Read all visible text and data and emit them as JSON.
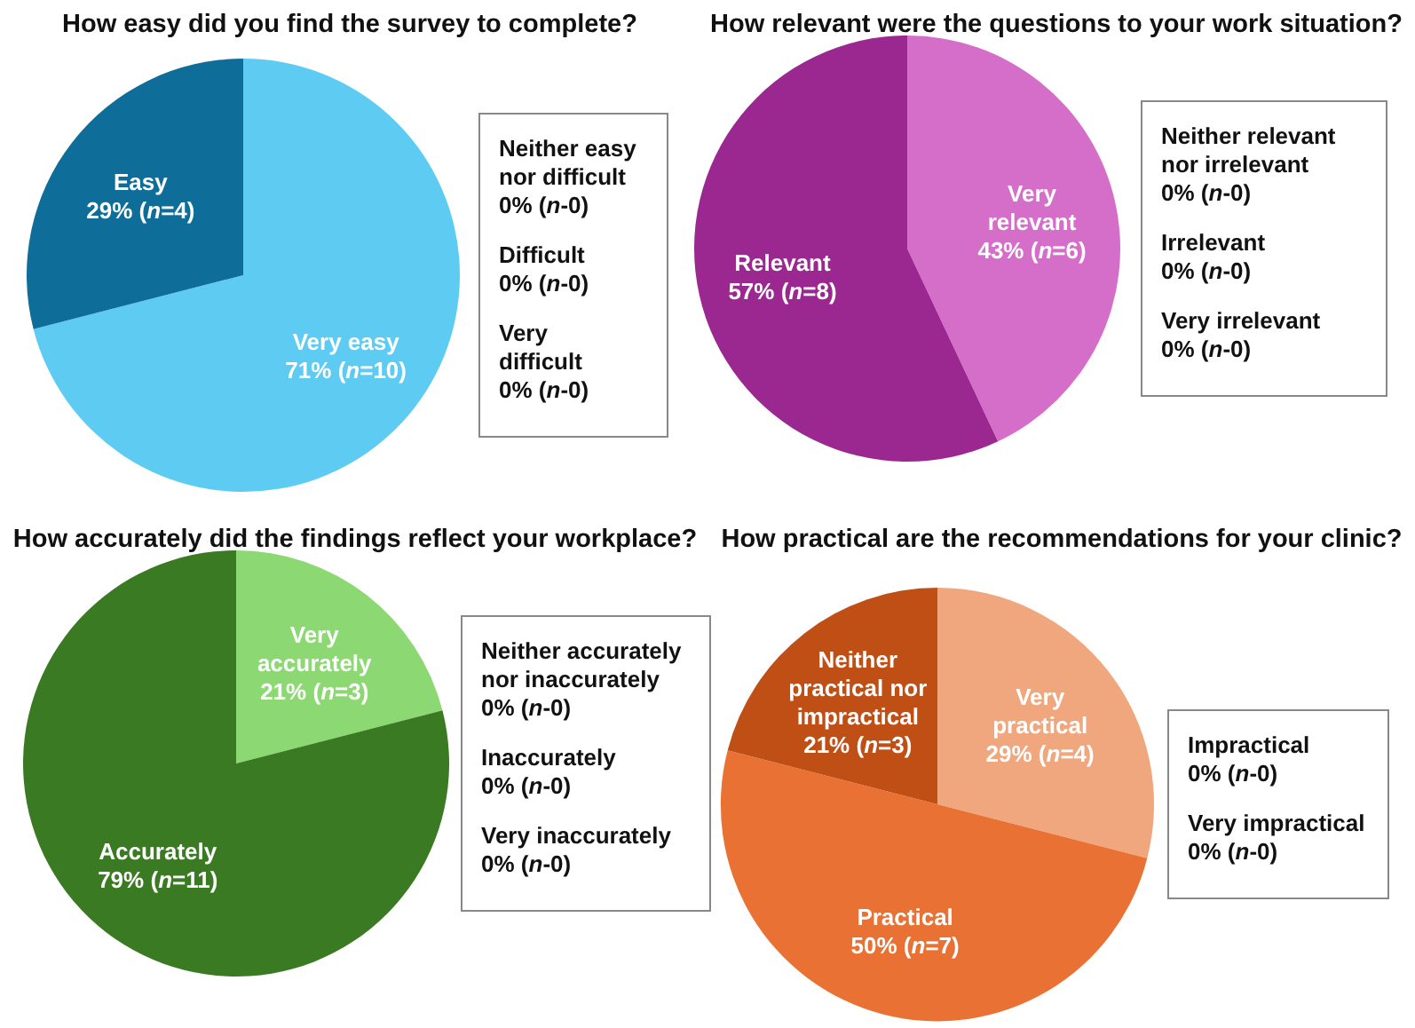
{
  "chart_data": [
    {
      "type": "pie",
      "title": "How easy did you find the survey to complete?",
      "categories": [
        "Very easy",
        "Easy",
        "Neither easy nor difficult",
        "Difficult",
        "Very difficult"
      ],
      "values": [
        71,
        29,
        0,
        0,
        0
      ],
      "value_labels": [
        "71% (n=10)",
        "29% (n=4)",
        "0% (n-0)",
        "0% (n-0)",
        "0% (n-0)"
      ],
      "colors": [
        "#5ecbf3",
        "#0e6e99",
        null,
        null,
        null
      ]
    },
    {
      "type": "pie",
      "title": "How relevant were the questions to your work situation?",
      "categories": [
        "Very relevant",
        "Relevant",
        "Neither relevant nor irrelevant",
        "Irrelevant",
        "Very irrelevant"
      ],
      "values": [
        43,
        57,
        0,
        0,
        0
      ],
      "value_labels": [
        "43% (n=6)",
        "57% (n=8)",
        "0% (n-0)",
        "0% (n-0)",
        "0% (n-0)"
      ],
      "colors": [
        "#d56ec8",
        "#9b2790",
        null,
        null,
        null
      ]
    },
    {
      "type": "pie",
      "title": "How accurately did the findings reflect your workplace?",
      "categories": [
        "Very accurately",
        "Accurately",
        "Neither accurately nor inaccurately",
        "Inaccurately",
        "Very inaccurately"
      ],
      "values": [
        21,
        79,
        0,
        0,
        0
      ],
      "value_labels": [
        "21% (n=3)",
        "79% (n=11)",
        "0% (n-0)",
        "0% (n-0)",
        "0% (n-0)"
      ],
      "colors": [
        "#8cd872",
        "#3a7a22",
        null,
        null,
        null
      ]
    },
    {
      "type": "pie",
      "title": "How practical are the recommendations for your clinic?",
      "categories": [
        "Very practical",
        "Practical",
        "Neither practical nor impractical",
        "Impractical",
        "Very impractical"
      ],
      "values": [
        29,
        50,
        21,
        0,
        0
      ],
      "value_labels": [
        "29% (n=4)",
        "50% (n=7)",
        "21% (n=3)",
        "0% (n-0)",
        "0% (n-0)"
      ],
      "colors": [
        "#f0a77e",
        "#e87133",
        "#c04f16",
        null,
        null
      ]
    }
  ]
}
